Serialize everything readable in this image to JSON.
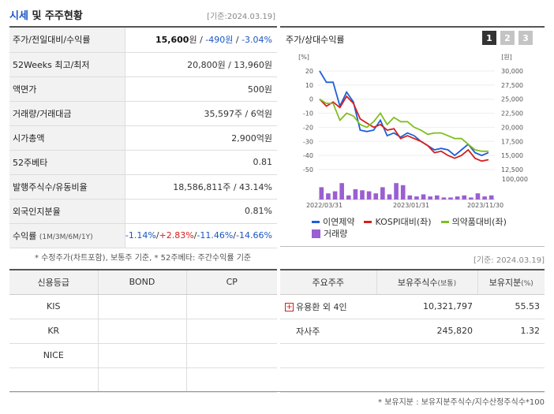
{
  "header": {
    "title_a": "시세",
    "title_b": " 및 주주현황",
    "date": "[기준:2024.03.19]"
  },
  "info": {
    "rows": [
      {
        "key": "주가/전일대비/수익률",
        "price": "15,600",
        "price_unit": "원",
        "sep1": " / ",
        "change": "-490원",
        "sep2": " / ",
        "rate": "-3.04%"
      },
      {
        "key": "52Weeks 최고/최저",
        "value": "20,800원 / 13,960원"
      },
      {
        "key": "액면가",
        "value": "500원"
      },
      {
        "key": "거래량/거래대금",
        "value": "35,597주 / 6억원"
      },
      {
        "key": "시가총액",
        "value": "2,900억원"
      },
      {
        "key": "52주베타",
        "value": "0.81"
      },
      {
        "key": "발행주식수/유동비율",
        "value": "18,586,811주 / 43.14%"
      },
      {
        "key": "외국인지분율",
        "value": "0.81%"
      }
    ],
    "returns": {
      "key": "수익률",
      "key_sub": "(1M/3M/6M/1Y)",
      "r1": "-1.14%",
      "r2": "+2.83%",
      "r3": "-11.46%",
      "r4": "-14.66%",
      "sep": "/"
    },
    "note": "* 수정주가(차트포함), 보통주 기준, * 52주베타: 주간수익률 기준"
  },
  "chart_panel": {
    "title": "주가/상대수익률",
    "tabs": [
      "1",
      "2",
      "3"
    ],
    "active_tab": "1"
  },
  "chart_data": {
    "type": "line",
    "left_axis_label": "[%]",
    "right_axis_label": "[원]",
    "left_ticks": [
      20,
      10,
      0,
      -10,
      -20,
      -30,
      -40,
      -50
    ],
    "right_ticks": [
      "30,000",
      "27,500",
      "25,000",
      "22,500",
      "20,000",
      "17,500",
      "15,000",
      "12,500"
    ],
    "volume_tick": "100,000",
    "x_ticks": [
      "2022/03/31",
      "2023/01/31",
      "2023/11/30"
    ],
    "ylim": [
      -50,
      20
    ],
    "series": [
      {
        "name": "이연제약",
        "color": "#1f5fd6",
        "values": [
          20,
          12,
          12,
          -5,
          5,
          -2,
          -22,
          -23,
          -22,
          -15,
          -26,
          -24,
          -27,
          -24,
          -26,
          -30,
          -33,
          -36,
          -35,
          -36,
          -40,
          -36,
          -32,
          -38,
          -40,
          -38
        ]
      },
      {
        "name": "KOSPI대비(좌)",
        "color": "#d42020",
        "values": [
          0,
          -5,
          -2,
          -6,
          2,
          -3,
          -14,
          -17,
          -20,
          -18,
          -22,
          -21,
          -28,
          -26,
          -28,
          -30,
          -33,
          -38,
          -37,
          -40,
          -42,
          -40,
          -36,
          -42,
          -44,
          -43
        ]
      },
      {
        "name": "의약품대비(좌)",
        "color": "#7fbf1f",
        "values": [
          0,
          -3,
          -3,
          -15,
          -10,
          -12,
          -18,
          -20,
          -16,
          -10,
          -18,
          -13,
          -16,
          -16,
          -20,
          -22,
          -25,
          -24,
          -24,
          -26,
          -28,
          -28,
          -32,
          -36,
          -37,
          -37
        ]
      }
    ],
    "volume": {
      "name": "거래량",
      "color": "#9a5fd1",
      "values": [
        60,
        30,
        40,
        80,
        20,
        50,
        45,
        40,
        30,
        60,
        25,
        80,
        70,
        20,
        15,
        25,
        15,
        20,
        10,
        10,
        15,
        20,
        10,
        30,
        15,
        20
      ]
    }
  },
  "date2": "[기준: 2024.03.19]",
  "credit": {
    "headers": [
      "신용등급",
      "BOND",
      "CP"
    ],
    "rows": [
      [
        "KIS",
        "",
        ""
      ],
      [
        "KR",
        "",
        ""
      ],
      [
        "NICE",
        "",
        ""
      ],
      [
        "",
        "",
        ""
      ]
    ]
  },
  "holders": {
    "headers": [
      "주요주주",
      "보유주식수",
      "(보통)",
      "보유지분",
      "(%)"
    ],
    "rows": [
      {
        "name": "유용환 외 4인",
        "shares": "10,321,797",
        "ratio": "55.53",
        "expand": "+"
      },
      {
        "name": "자사주",
        "shares": "245,820",
        "ratio": "1.32"
      }
    ],
    "note": "* 보유지분 : 보유지분주식수/지수산정주식수*100"
  }
}
